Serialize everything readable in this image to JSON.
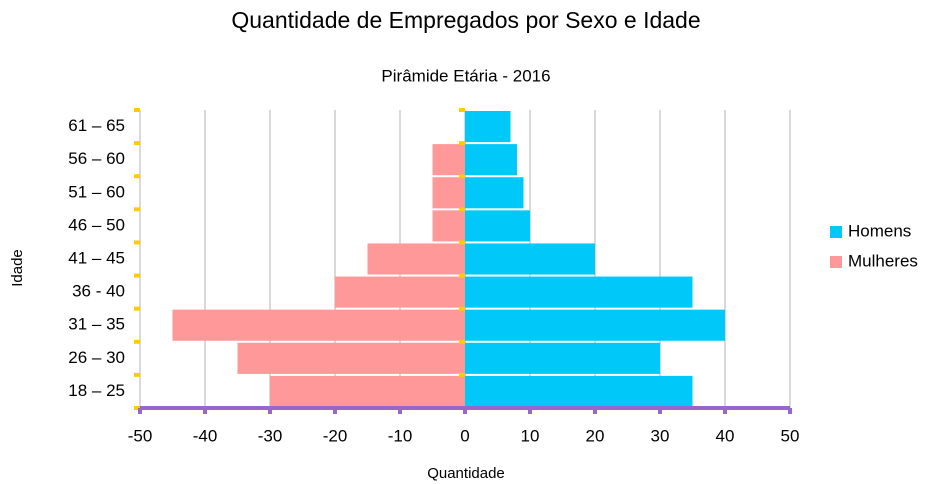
{
  "chart_data": {
    "type": "bar",
    "orientation": "horizontal",
    "title": "Quantidade de Empregados por Sexo e Idade",
    "subtitle": "Pirâmide Etária - 2016",
    "x_label": "Quantidade",
    "y_label": "Idade",
    "categories": [
      "18 – 25",
      "26 – 30",
      "31 – 35",
      "36 - 40",
      "41 – 45",
      "46 – 50",
      "51 – 60",
      "56 – 60",
      "61 – 65"
    ],
    "series": [
      {
        "name": "Homens",
        "color": "#00c8f8",
        "values": [
          35,
          30,
          40,
          35,
          20,
          10,
          9,
          8,
          7
        ]
      },
      {
        "name": "Mulheres",
        "color": "#ff9999",
        "values": [
          -30,
          -35,
          -45,
          -20,
          -15,
          -5,
          -5,
          -5,
          0
        ]
      }
    ],
    "xlim": [
      -50,
      50
    ],
    "xticks": [
      -50,
      -40,
      -30,
      -20,
      -10,
      0,
      10,
      20,
      30,
      40,
      50
    ],
    "grid": true,
    "legend": "right"
  }
}
